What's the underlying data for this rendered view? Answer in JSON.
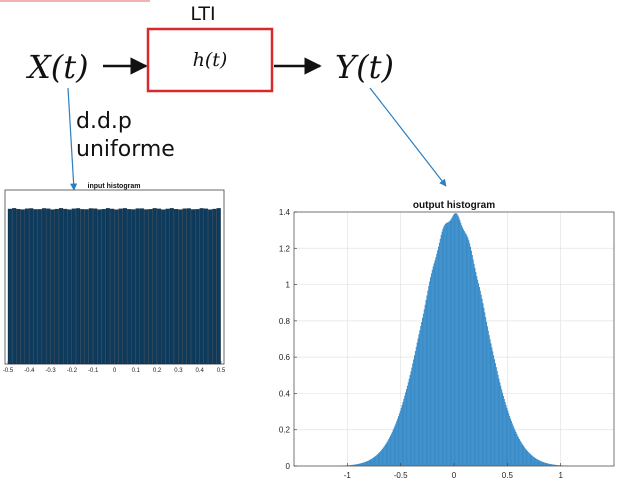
{
  "diagram": {
    "block_label": "LTI",
    "input_signal": "X(t)",
    "system": "h(t)",
    "output_signal": "Y(t)",
    "input_note_line1": "d.d.p",
    "input_note_line2": "uniforme",
    "block_border_color": "#d9292b",
    "arrow_pointer_color": "#2a7fc0"
  },
  "chart_data": [
    {
      "type": "bar",
      "title": "input histogram",
      "xlim": [
        -0.5,
        0.5
      ],
      "xticks": [
        "-0.5",
        "-0.4",
        "-0.3",
        "-0.2",
        "-0.1",
        "0",
        "0.1",
        "0.2",
        "0.3",
        "0.4",
        "0.5"
      ],
      "bins": 50,
      "level": 0.98,
      "ylim": [
        0,
        1.1
      ],
      "bar_color": "#0e3a5c"
    },
    {
      "type": "bar",
      "title": "output histogram",
      "xlim": [
        -1.5,
        1.5
      ],
      "xticks": [
        "-1",
        "-0.5",
        "0",
        "0.5",
        "1"
      ],
      "ylim": [
        0,
        1.4
      ],
      "yticks": [
        "0",
        "0.2",
        "0.4",
        "0.6",
        "0.8",
        "1",
        "1.2",
        "1.4"
      ],
      "peak": 1.38,
      "sigma": 0.29,
      "grid": true,
      "bar_color": "#3a8cc8"
    }
  ]
}
